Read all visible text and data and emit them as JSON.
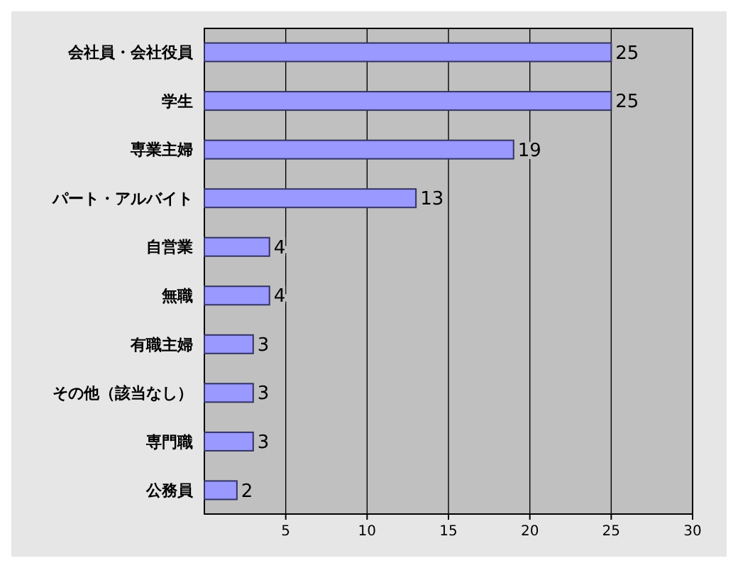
{
  "chart_data": {
    "type": "bar",
    "orientation": "horizontal",
    "categories": [
      "会社員・会社役員",
      "学生",
      "専業主婦",
      "パート・アルバイト",
      "自営業",
      "無職",
      "有職主婦",
      "その他（該当なし）",
      "専門職",
      "公務員"
    ],
    "values": [
      25,
      25,
      19,
      13,
      4,
      4,
      3,
      3,
      3,
      2
    ],
    "color": "#9999ff",
    "xlim": [
      0,
      30
    ],
    "xticks": [
      5,
      10,
      15,
      20,
      25,
      30
    ],
    "grid": "x",
    "data_labels": true
  }
}
